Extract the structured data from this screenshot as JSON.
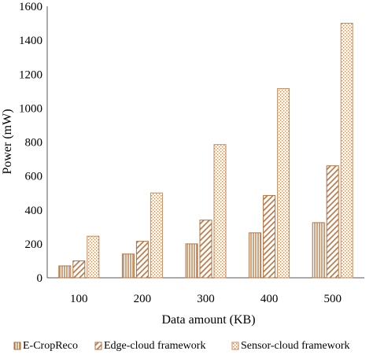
{
  "chart_data": {
    "type": "bar",
    "title": "",
    "xlabel": "Data amount (KB)",
    "ylabel": "Power (mW)",
    "ylim": [
      0,
      1600
    ],
    "yticks": [
      0,
      200,
      400,
      600,
      800,
      1000,
      1200,
      1400,
      1600
    ],
    "categories": [
      "100",
      "200",
      "300",
      "400",
      "500"
    ],
    "grid": false,
    "legend_position": "bottom",
    "series": [
      {
        "name": "E-CropReco",
        "values": [
          70,
          140,
          200,
          265,
          325
        ],
        "color": "#b5703c",
        "pattern": "vertical-stripes"
      },
      {
        "name": "Edge-cloud framework",
        "values": [
          100,
          215,
          340,
          485,
          660
        ],
        "color": "#b5703c",
        "pattern": "diagonal-stripes"
      },
      {
        "name": "Sensor-cloud framework",
        "values": [
          245,
          500,
          785,
          1115,
          1500
        ],
        "color": "#c48a5c",
        "pattern": "crosshatch"
      }
    ]
  }
}
